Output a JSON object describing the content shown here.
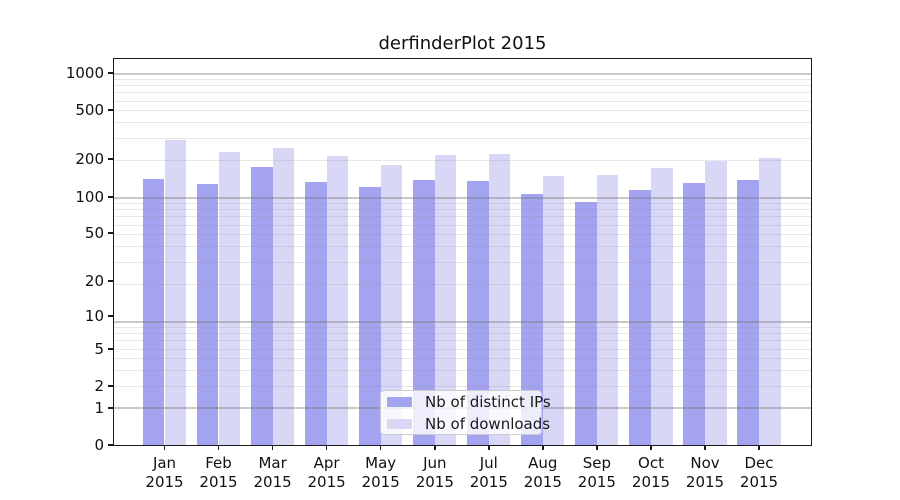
{
  "chart_data": {
    "type": "bar",
    "title": "derfinderPlot 2015",
    "months": [
      "Jan",
      "Feb",
      "Mar",
      "Apr",
      "May",
      "Jun",
      "Jul",
      "Aug",
      "Sep",
      "Oct",
      "Nov",
      "Dec"
    ],
    "year": "2015",
    "series": [
      {
        "name": "Nb of distinct IPs",
        "color": "#a3a3f0",
        "values": [
          139,
          126,
          173,
          132,
          119,
          137,
          134,
          105,
          90,
          113,
          128,
          136
        ]
      },
      {
        "name": "Nb of downloads",
        "color": "#d8d8f6",
        "values": [
          286,
          229,
          249,
          215,
          181,
          216,
          220,
          146,
          150,
          170,
          194,
          205
        ]
      }
    ],
    "y_ticks": [
      1000,
      500,
      200,
      100,
      50,
      20,
      10,
      5,
      2,
      1,
      0
    ],
    "y_scale": "log10(value+1)",
    "ylim": [
      0,
      1285
    ],
    "grid": true,
    "legend_position": "lower center",
    "grid_major_color": "#c3c3c3",
    "grid_minor_color": "#e7e7e7",
    "axis_color": "#1a1a1a"
  }
}
